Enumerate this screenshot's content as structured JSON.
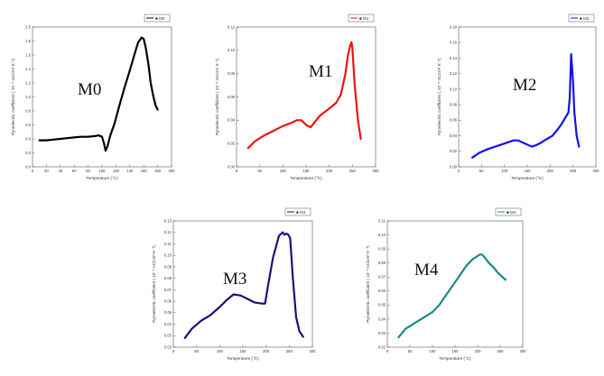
{
  "chart_data": [
    {
      "type": "line",
      "panel_label": "M0",
      "legend": "■ M0",
      "color": "#000000",
      "xlabel": "Temperature (°C)",
      "ylabel": "Pyroelectric coefficient ( 10⁻⁸ nC/cm² K⁻¹)",
      "xlim": [
        0,
        200
      ],
      "ylim": [
        0,
        2.0
      ],
      "xticks": [
        "0",
        "20",
        "40",
        "60",
        "80",
        "100",
        "120",
        "140",
        "160",
        "180",
        "200"
      ],
      "yticks": [
        "0.0",
        "0.2",
        "0.4",
        "0.6",
        "0.8",
        "1.0",
        "1.2",
        "1.4",
        "1.6",
        "1.8",
        "2.0"
      ],
      "x": [
        10,
        20,
        30,
        40,
        50,
        60,
        70,
        80,
        90,
        95,
        100,
        103,
        105,
        108,
        112,
        118,
        125,
        132,
        140,
        147,
        152,
        157,
        160,
        163,
        167,
        170,
        174,
        177,
        180
      ],
      "y": [
        0.38,
        0.38,
        0.39,
        0.4,
        0.41,
        0.42,
        0.43,
        0.43,
        0.44,
        0.45,
        0.43,
        0.33,
        0.23,
        0.3,
        0.45,
        0.62,
        0.88,
        1.12,
        1.38,
        1.62,
        1.78,
        1.85,
        1.83,
        1.7,
        1.45,
        1.2,
        1.0,
        0.88,
        0.82
      ]
    },
    {
      "type": "line",
      "panel_label": "M1",
      "legend": "■ M1",
      "color": "#ee1111",
      "xlabel": "Temperature (°C)",
      "ylabel": "Pyroelectric coefficient ( 10⁻⁸ nC/cm² K⁻¹)",
      "xlim": [
        0,
        300
      ],
      "ylim": [
        0,
        0.12
      ],
      "xticks": [
        "0",
        "50",
        "100",
        "150",
        "200",
        "250",
        "300"
      ],
      "yticks": [
        "0.00",
        "0.02",
        "0.04",
        "0.06",
        "0.08",
        "0.10",
        "0.12"
      ],
      "x": [
        25,
        40,
        60,
        80,
        100,
        120,
        130,
        140,
        150,
        160,
        170,
        180,
        200,
        215,
        225,
        235,
        240,
        245,
        248,
        250,
        255,
        262,
        268
      ],
      "y": [
        0.016,
        0.022,
        0.027,
        0.031,
        0.035,
        0.038,
        0.04,
        0.04,
        0.036,
        0.034,
        0.039,
        0.044,
        0.05,
        0.055,
        0.062,
        0.08,
        0.095,
        0.104,
        0.107,
        0.102,
        0.07,
        0.04,
        0.024
      ]
    },
    {
      "type": "line",
      "panel_label": "M2",
      "legend": "■ M2",
      "color": "#1111ee",
      "xlabel": "Temperature (°C)",
      "ylabel": "Pyroelectric coefficient ( 10⁻⁸ nC/cm² K⁻¹)",
      "xlim": [
        0,
        300
      ],
      "ylim": [
        0,
        0.18
      ],
      "xticks": [
        "0",
        "50",
        "100",
        "150",
        "200",
        "250",
        "300"
      ],
      "yticks": [
        "0.00",
        "0.02",
        "0.04",
        "0.06",
        "0.08",
        "0.10",
        "0.12",
        "0.14",
        "0.16",
        "0.18"
      ],
      "x": [
        30,
        45,
        60,
        80,
        100,
        120,
        130,
        145,
        160,
        170,
        180,
        190,
        205,
        215,
        225,
        232,
        236,
        240,
        243,
        246,
        250,
        253,
        258,
        263
      ],
      "y": [
        0.012,
        0.018,
        0.022,
        0.026,
        0.03,
        0.034,
        0.034,
        0.03,
        0.026,
        0.028,
        0.031,
        0.035,
        0.04,
        0.047,
        0.055,
        0.062,
        0.066,
        0.07,
        0.09,
        0.145,
        0.11,
        0.07,
        0.04,
        0.026
      ]
    },
    {
      "type": "line",
      "panel_label": "M3",
      "legend": "■ M3",
      "color": "#14147a",
      "xlabel": "Temperature (°C)",
      "ylabel": "Pyroelectric coefficient ( 10⁻⁸ nC/cm² K⁻¹)",
      "xlim": [
        0,
        300
      ],
      "ylim": [
        0.02,
        0.13
      ],
      "xticks": [
        "0",
        "50",
        "100",
        "150",
        "200",
        "250",
        "300"
      ],
      "yticks": [
        "0.02",
        "0.03",
        "0.04",
        "0.05",
        "0.06",
        "0.07",
        "0.08",
        "0.09",
        "0.10",
        "0.11",
        "0.12",
        "0.13"
      ],
      "x": [
        25,
        40,
        60,
        80,
        100,
        115,
        130,
        145,
        160,
        175,
        190,
        198,
        205,
        215,
        228,
        236,
        240,
        244,
        248,
        252,
        258,
        265,
        272,
        280
      ],
      "y": [
        0.028,
        0.036,
        0.043,
        0.048,
        0.055,
        0.061,
        0.066,
        0.065,
        0.062,
        0.059,
        0.058,
        0.058,
        0.075,
        0.098,
        0.117,
        0.12,
        0.118,
        0.119,
        0.118,
        0.115,
        0.08,
        0.046,
        0.034,
        0.029
      ]
    },
    {
      "type": "line",
      "panel_label": "M4",
      "legend": "■ M4",
      "color": "#178c86",
      "xlabel": "Temperature (°C)",
      "ylabel": "Pyroelectric coefficient ( 10⁻⁸ nC/cm² K⁻¹)",
      "xlim": [
        0,
        300
      ],
      "ylim": [
        0.02,
        0.11
      ],
      "xticks": [
        "0",
        "50",
        "100",
        "150",
        "200",
        "250",
        "300"
      ],
      "yticks": [
        "0.02",
        "0.03",
        "0.04",
        "0.05",
        "0.06",
        "0.07",
        "0.08",
        "0.09",
        "0.10",
        "0.11"
      ],
      "x": [
        25,
        40,
        55,
        70,
        85,
        100,
        115,
        130,
        145,
        160,
        175,
        190,
        200,
        205,
        210,
        218,
        225,
        235,
        245,
        255,
        262
      ],
      "y": [
        0.027,
        0.033,
        0.036,
        0.039,
        0.042,
        0.045,
        0.05,
        0.057,
        0.064,
        0.071,
        0.078,
        0.083,
        0.085,
        0.086,
        0.086,
        0.083,
        0.08,
        0.077,
        0.073,
        0.07,
        0.068
      ]
    }
  ]
}
